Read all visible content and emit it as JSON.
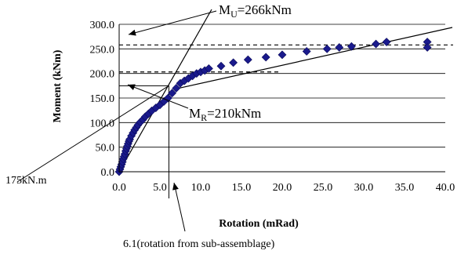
{
  "chart_data": {
    "type": "scatter",
    "xlabel": "Rotation (mRad)",
    "ylabel": "Moment (kNm)",
    "xlim": [
      0,
      40
    ],
    "ylim": [
      0,
      300
    ],
    "x_ticks": [
      "0.0",
      "5.0",
      "10.0",
      "15.0",
      "20.0",
      "25.0",
      "30.0",
      "35.0",
      "40.0"
    ],
    "y_ticks": [
      "0.0",
      "50.0",
      "100.0",
      "150.0",
      "200.0",
      "250.0",
      "300.0"
    ],
    "grid": "horizontal",
    "marker_color": "#1a1a8c",
    "series": [
      {
        "x": [
          0.0,
          0.1,
          0.2,
          0.3,
          0.4,
          0.5,
          0.6,
          0.7,
          0.8,
          0.9,
          1.0,
          1.1,
          1.2,
          1.3,
          1.5,
          1.7,
          1.9,
          2.1,
          2.3,
          2.6,
          2.9,
          3.2,
          3.6,
          4.0,
          4.5,
          5.0,
          5.5,
          6.0,
          6.5,
          7.0,
          7.5,
          8.0,
          8.5,
          9.0,
          9.5,
          10.0,
          10.5,
          11.0,
          12.5,
          14.0,
          15.8,
          18.0,
          20.0,
          23.0,
          25.5,
          27.0,
          28.5,
          31.5,
          32.8,
          37.8,
          37.8
        ],
        "y": [
          0,
          5,
          10,
          15,
          20,
          26,
          31,
          36,
          42,
          47,
          52,
          57,
          62,
          66,
          73,
          79,
          85,
          90,
          95,
          101,
          106,
          112,
          118,
          124,
          130,
          136,
          143,
          150,
          160,
          170,
          180,
          185,
          190,
          195,
          200,
          203,
          206,
          210,
          215,
          222,
          228,
          233,
          238,
          245,
          250,
          253,
          255,
          260,
          264,
          264,
          253
        ]
      }
    ],
    "lines": [
      {
        "label": "upper_dashed",
        "y": 258
      },
      {
        "label": "lower_dashed",
        "y": 203
      }
    ],
    "annotations": {
      "mu_main": "M",
      "mu_sub": "U",
      "mu_tail": "=266kNm",
      "mr_main": "M",
      "mr_sub": "R",
      "mr_tail": "=210kNm",
      "left_label": "175kN.m",
      "bottom_label": "6.1(rotation from sub-assemblage)"
    }
  }
}
